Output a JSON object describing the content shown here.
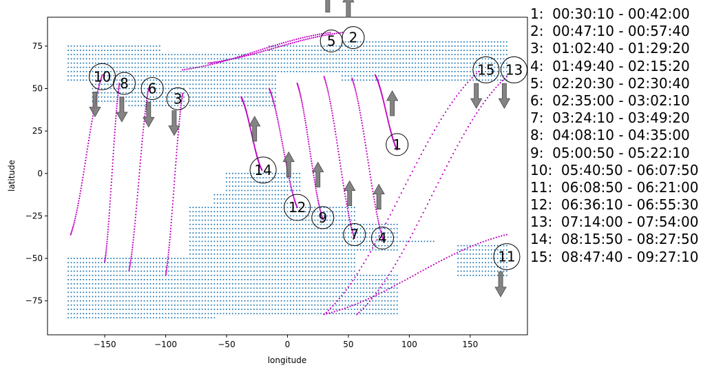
{
  "chart_data": {
    "type": "scatter",
    "title": "",
    "xlabel": "longitude",
    "ylabel": "latitude",
    "xlim": [
      -197,
      197
    ],
    "ylim": [
      -95,
      92
    ],
    "xticks": [
      -150,
      -100,
      -50,
      0,
      50,
      100,
      150
    ],
    "yticks": [
      -75,
      -50,
      -25,
      0,
      25,
      50,
      75
    ],
    "grid": false,
    "colors": {
      "land": "#1f77b4",
      "track": "#c000c0",
      "arrow": "#6e6e6e"
    },
    "land_regions": [
      {
        "lon": [
          -180,
          -105
        ],
        "lat": [
          55,
          77
        ]
      },
      {
        "lon": [
          -105,
          -15
        ],
        "lat": [
          52,
          72
        ]
      },
      {
        "lon": [
          -15,
          45
        ],
        "lat": [
          60,
          76
        ]
      },
      {
        "lon": [
          45,
          180
        ],
        "lat": [
          55,
          78
        ]
      },
      {
        "lon": [
          -160,
          -100
        ],
        "lat": [
          42,
          56
        ]
      },
      {
        "lon": [
          -130,
          -85
        ],
        "lat": [
          38,
          52
        ]
      },
      {
        "lon": [
          -80,
          -10
        ],
        "lat": [
          40,
          60
        ]
      },
      {
        "lon": [
          -60,
          0
        ],
        "lat": [
          -35,
          -12
        ]
      },
      {
        "lon": [
          -50,
          10
        ],
        "lat": [
          -10,
          2
        ]
      },
      {
        "lon": [
          -80,
          55
        ],
        "lat": [
          -60,
          -20
        ]
      },
      {
        "lon": [
          10,
          90
        ],
        "lat": [
          -45,
          -30
        ]
      },
      {
        "lon": [
          55,
          120
        ],
        "lat": [
          -42,
          -38
        ]
      },
      {
        "lon": [
          -180,
          -60
        ],
        "lat": [
          -85,
          -50
        ]
      },
      {
        "lon": [
          -60,
          90
        ],
        "lat": [
          -84,
          -60
        ]
      },
      {
        "lon": [
          140,
          180
        ],
        "lat": [
          -60,
          -42
        ]
      }
    ],
    "passes": [
      {
        "id": "1",
        "time": "00:30:10 - 00:42:00",
        "lon": [
          72,
          90
        ],
        "lat": [
          58,
          14
        ],
        "direction": "up",
        "label_lon": 90,
        "label_lat": 17,
        "arrow_lon": 86,
        "arrow_lat": 34
      },
      {
        "id": "2",
        "time": "00:47:10 - 00:57:40",
        "lon": [
          -65,
          45
        ],
        "lat": [
          65,
          83
        ],
        "direction": "up",
        "label_lon": 54,
        "label_lat": 80,
        "arrow_lon": 50,
        "arrow_lat": 92
      },
      {
        "id": "3",
        "time": "01:02:40 - 01:29:20",
        "lon": [
          -100,
          -86
        ],
        "lat": [
          -60,
          47
        ],
        "direction": "down",
        "label_lon": -90,
        "label_lat": 44,
        "arrow_lon": -93,
        "arrow_lat": 37
      },
      {
        "id": "4",
        "time": "01:49:40 - 02:15:20",
        "lon": [
          53,
          79
        ],
        "lat": [
          56,
          -40
        ],
        "direction": "up",
        "label_lon": 78,
        "label_lat": -38,
        "arrow_lon": 75,
        "arrow_lat": -21
      },
      {
        "id": "5",
        "time": "02:20:30 - 02:30:40",
        "lon": [
          -86,
          35
        ],
        "lat": [
          61,
          83
        ],
        "direction": "up",
        "label_lon": 36,
        "label_lat": 78,
        "arrow_lon": 33,
        "arrow_lat": 95
      },
      {
        "id": "6",
        "time": "02:35:00 - 03:02:10",
        "lon": [
          -130,
          -114
        ],
        "lat": [
          -57,
          50
        ],
        "direction": "down",
        "label_lon": -111,
        "label_lat": 50,
        "arrow_lon": -114,
        "arrow_lat": 42
      },
      {
        "id": "7",
        "time": "03:24:10 - 03:49:20",
        "lon": [
          30,
          55
        ],
        "lat": [
          57,
          -38
        ],
        "direction": "up",
        "label_lon": 55,
        "label_lat": -36,
        "arrow_lon": 51,
        "arrow_lat": -19
      },
      {
        "id": "8",
        "time": "04:08:10 - 04:35:00",
        "lon": [
          -150,
          -138
        ],
        "lat": [
          -52,
          53
        ],
        "direction": "down",
        "label_lon": -134,
        "label_lat": 53,
        "arrow_lon": -136,
        "arrow_lat": 45
      },
      {
        "id": "9",
        "time": "05:00:50 - 05:22:10",
        "lon": [
          8,
          29
        ],
        "lat": [
          53,
          -27
        ],
        "direction": "up",
        "label_lon": 29,
        "label_lat": -26,
        "arrow_lon": 25,
        "arrow_lat": -8
      },
      {
        "id": "10",
        "time": "05:40:50 - 06:07:50",
        "lon": [
          -178,
          -152
        ],
        "lat": [
          -36,
          58
        ],
        "direction": "down",
        "label_lon": -152,
        "label_lat": 57,
        "arrow_lon": -158,
        "arrow_lat": 48
      },
      {
        "id": "11",
        "time": "06:08:50 - 06:21:00",
        "lon": [
          30,
          180
        ],
        "lat": [
          -83,
          -36
        ],
        "direction": "down",
        "label_lon": 180,
        "label_lat": -49,
        "arrow_lon": 175,
        "arrow_lat": -58
      },
      {
        "id": "12",
        "time": "06:36:10 - 06:55:30",
        "lon": [
          -15,
          8
        ],
        "lat": [
          50,
          -20
        ],
        "direction": "up",
        "label_lon": 8,
        "label_lat": -20,
        "arrow_lon": 1,
        "arrow_lat": -2
      },
      {
        "id": "13",
        "time": "07:14:00 - 07:54:00",
        "lon": [
          57,
          180
        ],
        "lat": [
          -83,
          57
        ],
        "direction": "down",
        "label_lon": 186,
        "label_lat": 61,
        "arrow_lon": 178,
        "arrow_lat": 53
      },
      {
        "id": "14",
        "time": "08:15:50 - 08:27:50",
        "lon": [
          -38,
          -21
        ],
        "lat": [
          45,
          2
        ],
        "direction": "up",
        "label_lon": -20,
        "label_lat": 2,
        "arrow_lon": -27,
        "arrow_lat": 19
      },
      {
        "id": "15",
        "time": "08:47:40 - 09:27:10",
        "lon": [
          30,
          157
        ],
        "lat": [
          -83,
          60
        ],
        "direction": "down",
        "label_lon": 163,
        "label_lat": 61,
        "arrow_lon": 155,
        "arrow_lat": 53
      }
    ]
  }
}
